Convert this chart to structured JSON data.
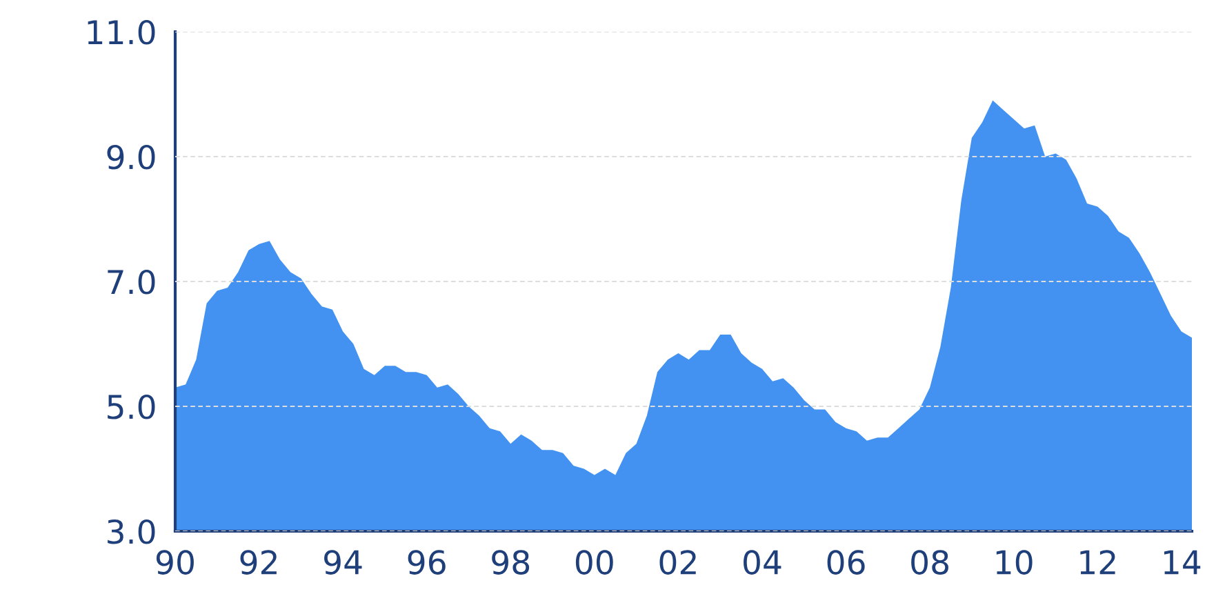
{
  "chart_data": {
    "type": "area",
    "color": "#4392f1",
    "x": [
      1990,
      1990.25,
      1990.5,
      1990.75,
      1991,
      1991.25,
      1991.5,
      1991.75,
      1992,
      1992.25,
      1992.5,
      1992.75,
      1993,
      1993.25,
      1993.5,
      1993.75,
      1994,
      1994.25,
      1994.5,
      1994.75,
      1995,
      1995.25,
      1995.5,
      1995.75,
      1996,
      1996.25,
      1996.5,
      1996.75,
      1997,
      1997.25,
      1997.5,
      1997.75,
      1998,
      1998.25,
      1998.5,
      1998.75,
      1999,
      1999.25,
      1999.5,
      1999.75,
      2000,
      2000.25,
      2000.5,
      2000.75,
      2001,
      2001.25,
      2001.5,
      2001.75,
      2002,
      2002.25,
      2002.5,
      2002.75,
      2003,
      2003.25,
      2003.5,
      2003.75,
      2004,
      2004.25,
      2004.5,
      2004.75,
      2005,
      2005.25,
      2005.5,
      2005.75,
      2006,
      2006.25,
      2006.5,
      2006.75,
      2007,
      2007.25,
      2007.5,
      2007.75,
      2008,
      2008.25,
      2008.5,
      2008.75,
      2009,
      2009.25,
      2009.5,
      2009.75,
      2010,
      2010.25,
      2010.5,
      2010.75,
      2011,
      2011.25,
      2011.5,
      2011.75,
      2012,
      2012.25,
      2012.5,
      2012.75,
      2013,
      2013.25,
      2013.5,
      2013.75,
      2014,
      2014.25
    ],
    "values": [
      5.3,
      5.35,
      5.75,
      6.65,
      6.85,
      6.9,
      7.15,
      7.5,
      7.6,
      7.65,
      7.35,
      7.15,
      7.05,
      6.8,
      6.6,
      6.55,
      6.2,
      6.0,
      5.6,
      5.5,
      5.65,
      5.65,
      5.55,
      5.55,
      5.5,
      5.3,
      5.35,
      5.2,
      5.0,
      4.85,
      4.65,
      4.6,
      4.4,
      4.55,
      4.45,
      4.3,
      4.3,
      4.25,
      4.05,
      4.0,
      3.9,
      4.0,
      3.9,
      4.25,
      4.4,
      4.85,
      5.55,
      5.75,
      5.85,
      5.75,
      5.9,
      5.9,
      6.15,
      6.15,
      5.85,
      5.7,
      5.6,
      5.4,
      5.45,
      5.3,
      5.1,
      4.95,
      4.95,
      4.75,
      4.65,
      4.6,
      4.45,
      4.5,
      4.5,
      4.65,
      4.8,
      4.95,
      5.3,
      5.95,
      6.9,
      8.3,
      9.3,
      9.55,
      9.9,
      9.75,
      9.6,
      9.45,
      9.5,
      9.0,
      9.05,
      8.95,
      8.65,
      8.25,
      8.2,
      8.05,
      7.8,
      7.7,
      7.45,
      7.15,
      6.8,
      6.45,
      6.2,
      6.1
    ],
    "xlim": [
      1990,
      2014.25
    ],
    "ylim": [
      3,
      11
    ],
    "xticks": [
      {
        "value": 1990,
        "label": "90"
      },
      {
        "value": 1992,
        "label": "92"
      },
      {
        "value": 1994,
        "label": "94"
      },
      {
        "value": 1996,
        "label": "96"
      },
      {
        "value": 1998,
        "label": "98"
      },
      {
        "value": 2000,
        "label": "00"
      },
      {
        "value": 2002,
        "label": "02"
      },
      {
        "value": 2004,
        "label": "04"
      },
      {
        "value": 2006,
        "label": "06"
      },
      {
        "value": 2008,
        "label": "08"
      },
      {
        "value": 2010,
        "label": "10"
      },
      {
        "value": 2012,
        "label": "12"
      },
      {
        "value": 2014,
        "label": "14"
      }
    ],
    "yticks": [
      {
        "value": 3,
        "label": "3.0"
      },
      {
        "value": 5,
        "label": "5.0"
      },
      {
        "value": 7,
        "label": "7.0"
      },
      {
        "value": 9,
        "label": "9.0"
      },
      {
        "value": 11,
        "label": "11.0"
      }
    ],
    "grid": "y"
  }
}
